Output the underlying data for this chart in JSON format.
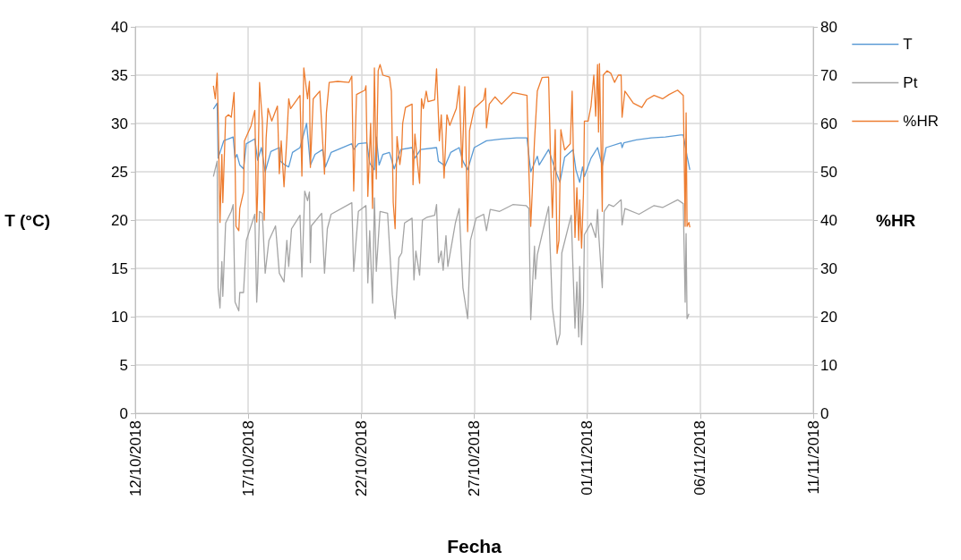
{
  "chart_data": {
    "type": "line",
    "xlabel": "Fecha",
    "ylabel": "T (°C)",
    "y2label": "%HR",
    "xlim": [
      "2018-10-12",
      "2018-11-11"
    ],
    "xticks": [
      {
        "value": "2018-10-12",
        "label": "12/10/2018"
      },
      {
        "value": "2018-10-17",
        "label": "17/10/2018"
      },
      {
        "value": "2018-10-22",
        "label": "22/10/2018"
      },
      {
        "value": "2018-10-27",
        "label": "27/10/2018"
      },
      {
        "value": "2018-11-01",
        "label": "01/11/2018"
      },
      {
        "value": "2018-11-06",
        "label": "06/11/2018"
      },
      {
        "value": "2018-11-11",
        "label": "11/11/2018"
      }
    ],
    "ylim": [
      0,
      40
    ],
    "yticks": [
      0,
      5,
      10,
      15,
      20,
      25,
      30,
      35,
      40
    ],
    "y2lim": [
      0,
      80
    ],
    "y2ticks": [
      0,
      10,
      20,
      30,
      40,
      50,
      60,
      70,
      80
    ],
    "grid": true,
    "legend": "right",
    "marker": "none",
    "line_style": "solid",
    "series": [
      {
        "name": "T",
        "color": "#5b9bd5",
        "x": [
          "2018-10-15T11:00",
          "2018-10-15T15:00",
          "2018-10-15T16:00",
          "2018-10-15T22:00",
          "2018-10-16T08:00",
          "2018-10-16T10:00",
          "2018-10-16T12:00",
          "2018-10-16T15:00",
          "2018-10-16T19:00",
          "2018-10-16T22:00",
          "2018-10-17T07:00",
          "2018-10-17T10:00",
          "2018-10-17T14:00",
          "2018-10-17T18:00",
          "2018-10-18T00:00",
          "2018-10-18T09:00",
          "2018-10-18T10:00",
          "2018-10-18T15:00",
          "2018-10-18T19:00",
          "2018-10-18T23:00",
          "2018-10-19T07:00",
          "2018-10-19T14:00",
          "2018-10-19T18:00",
          "2018-10-19T23:00",
          "2018-10-20T07:00",
          "2018-10-20T10:00",
          "2018-10-20T16:00",
          "2018-10-21T14:00",
          "2018-10-21T16:00",
          "2018-10-21T21:00",
          "2018-10-22T06:00",
          "2018-10-22T09:00",
          "2018-10-22T14:00",
          "2018-10-22T16:00",
          "2018-10-22T19:00",
          "2018-10-22T23:00",
          "2018-10-23T06:00",
          "2018-10-23T11:00",
          "2018-10-23T18:00",
          "2018-10-24T06:00",
          "2018-10-24T09:00",
          "2018-10-24T15:00",
          "2018-10-25T08:00",
          "2018-10-25T10:00",
          "2018-10-25T17:00",
          "2018-10-25T23:00",
          "2018-10-26T08:00",
          "2018-10-26T12:00",
          "2018-10-26T17:00",
          "2018-10-27T00:00",
          "2018-10-27T13:00",
          "2018-10-28T05:00",
          "2018-10-28T21:00",
          "2018-10-29T08:00",
          "2018-10-29T12:00",
          "2018-10-29T19:00",
          "2018-10-29T21:00",
          "2018-10-30T07:00",
          "2018-10-30T14:00",
          "2018-10-30T19:00",
          "2018-10-31T00:00",
          "2018-10-31T09:00",
          "2018-10-31T12:00",
          "2018-10-31T16:00",
          "2018-10-31T19:00",
          "2018-10-31T21:00",
          "2018-11-01T04:00",
          "2018-11-01T11:00",
          "2018-11-01T16:00",
          "2018-11-01T20:00",
          "2018-11-02T12:00",
          "2018-11-02T13:00",
          "2018-11-02T15:00",
          "2018-11-03T04:00",
          "2018-11-03T20:00",
          "2018-11-04T11:00",
          "2018-11-05T03:00",
          "2018-11-05T06:00",
          "2018-11-05T10:00",
          "2018-11-05T13:00"
        ],
        "values": [
          31.5,
          32.1,
          26.4,
          28.2,
          28.6,
          26.4,
          26.8,
          25.7,
          25.3,
          27.9,
          28.4,
          26.2,
          27.5,
          25.0,
          27.1,
          27.5,
          26.1,
          25.7,
          25.5,
          27.0,
          27.5,
          30.0,
          25.7,
          26.8,
          27.3,
          25.5,
          27.0,
          27.9,
          27.3,
          27.9,
          28.0,
          25.9,
          25.2,
          28.6,
          25.7,
          26.8,
          27.0,
          25.3,
          27.3,
          27.5,
          26.4,
          27.3,
          27.5,
          26.1,
          25.6,
          27.0,
          27.5,
          26.1,
          25.2,
          27.5,
          28.2,
          28.4,
          28.5,
          28.5,
          25.0,
          26.6,
          25.7,
          27.3,
          25.2,
          23.9,
          26.5,
          27.3,
          25.2,
          23.9,
          25.5,
          24.5,
          26.4,
          27.5,
          25.6,
          27.5,
          28.0,
          27.5,
          28.0,
          28.3,
          28.5,
          28.6,
          28.8,
          28.8,
          26.6,
          25.2
        ]
      },
      {
        "name": "Pt",
        "color": "#a5a5a5",
        "x": [
          "2018-10-15T11:00",
          "2018-10-15T15:00",
          "2018-10-15T16:00",
          "2018-10-15T18:00",
          "2018-10-15T20:00",
          "2018-10-15T21:00",
          "2018-10-16T00:00",
          "2018-10-16T06:00",
          "2018-10-16T08:00",
          "2018-10-16T10:00",
          "2018-10-16T14:00",
          "2018-10-16T15:00",
          "2018-10-16T19:00",
          "2018-10-16T22:00",
          "2018-10-17T07:00",
          "2018-10-17T09:00",
          "2018-10-17T10:00",
          "2018-10-17T12:00",
          "2018-10-17T15:00",
          "2018-10-17T18:00",
          "2018-10-17T22:00",
          "2018-10-18T05:00",
          "2018-10-18T09:00",
          "2018-10-18T14:00",
          "2018-10-18T17:00",
          "2018-10-18T19:00",
          "2018-10-18T22:00",
          "2018-10-19T07:00",
          "2018-10-19T09:00",
          "2018-10-19T12:00",
          "2018-10-19T15:00",
          "2018-10-19T17:00",
          "2018-10-19T18:00",
          "2018-10-19T19:00",
          "2018-10-20T06:00",
          "2018-10-20T09:00",
          "2018-10-20T12:00",
          "2018-10-20T16:00",
          "2018-10-21T14:00",
          "2018-10-21T16:00",
          "2018-10-21T21:00",
          "2018-10-22T05:00",
          "2018-10-22T07:00",
          "2018-10-22T09:00",
          "2018-10-22T12:00",
          "2018-10-22T14:00",
          "2018-10-22T16:00",
          "2018-10-22T20:00",
          "2018-10-23T04:00",
          "2018-10-23T09:00",
          "2018-10-23T12:00",
          "2018-10-23T16:00",
          "2018-10-23T19:00",
          "2018-10-23T22:00",
          "2018-10-24T06:00",
          "2018-10-24T08:00",
          "2018-10-24T10:00",
          "2018-10-24T14:00",
          "2018-10-24T17:00",
          "2018-10-24T22:00",
          "2018-10-25T06:00",
          "2018-10-25T08:00",
          "2018-10-25T10:00",
          "2018-10-25T13:00",
          "2018-10-25T15:00",
          "2018-10-25T18:00",
          "2018-10-25T20:00",
          "2018-10-26T04:00",
          "2018-10-26T08:00",
          "2018-10-26T12:00",
          "2018-10-26T17:00",
          "2018-10-26T20:00",
          "2018-10-27T02:00",
          "2018-10-27T10:00",
          "2018-10-27T13:00",
          "2018-10-27T17:00",
          "2018-10-28T03:00",
          "2018-10-28T17:00",
          "2018-10-29T07:00",
          "2018-10-29T10:00",
          "2018-10-29T12:00",
          "2018-10-29T16:00",
          "2018-10-29T17:00",
          "2018-10-29T19:00",
          "2018-10-30T07:00",
          "2018-10-30T11:00",
          "2018-10-30T16:00",
          "2018-10-30T19:00",
          "2018-10-30T21:00",
          "2018-10-31T07:00",
          "2018-10-31T11:00",
          "2018-10-31T13:00",
          "2018-10-31T15:00",
          "2018-10-31T16:00",
          "2018-10-31T18:00",
          "2018-10-31T20:00",
          "2018-10-31T21:00",
          "2018-11-01T04:00",
          "2018-11-01T09:00",
          "2018-11-01T11:00",
          "2018-11-01T12:00",
          "2018-11-01T16:00",
          "2018-11-01T18:00",
          "2018-11-01T23:00",
          "2018-11-02T04:00",
          "2018-11-02T12:00",
          "2018-11-02T13:00",
          "2018-11-02T16:00",
          "2018-11-03T07:00",
          "2018-11-03T23:00",
          "2018-11-04T08:00",
          "2018-11-05T00:00",
          "2018-11-05T06:00",
          "2018-11-05T08:00",
          "2018-11-05T09:00",
          "2018-11-05T10:00",
          "2018-11-05T12:00"
        ],
        "values": [
          24.5,
          26.1,
          13.0,
          10.9,
          15.7,
          12.1,
          19.7,
          20.9,
          21.6,
          11.5,
          10.6,
          12.5,
          12.5,
          17.9,
          20.6,
          11.5,
          13.6,
          20.9,
          20.7,
          14.5,
          17.9,
          19.4,
          14.5,
          13.6,
          17.9,
          15.2,
          19.1,
          20.5,
          14.1,
          23.0,
          22.0,
          22.9,
          15.6,
          19.4,
          20.7,
          14.5,
          19.1,
          20.6,
          21.8,
          14.7,
          20.9,
          21.5,
          13.5,
          18.9,
          11.4,
          22.3,
          14.7,
          20.9,
          20.7,
          12.3,
          9.8,
          16.1,
          16.6,
          19.7,
          20.2,
          13.8,
          16.8,
          14.3,
          20.0,
          20.3,
          20.5,
          21.6,
          15.6,
          16.8,
          14.8,
          18.4,
          15.2,
          19.7,
          21.2,
          13.0,
          9.8,
          17.9,
          20.2,
          20.6,
          18.9,
          21.1,
          20.9,
          21.6,
          21.5,
          21.2,
          9.7,
          17.3,
          13.9,
          16.4,
          21.4,
          10.9,
          7.1,
          8.2,
          16.6,
          20.5,
          8.8,
          13.6,
          7.9,
          15.2,
          7.1,
          11.5,
          18.5,
          19.7,
          18.2,
          21.1,
          18.8,
          13.0,
          20.9,
          21.6,
          21.4,
          22.1,
          19.5,
          21.2,
          20.6,
          21.5,
          21.3,
          22.1,
          21.7,
          11.5,
          18.6,
          9.8,
          10.3
        ]
      },
      {
        "name": "%HR",
        "color": "#ed7d31",
        "axis": "y2",
        "x": [
          "2018-10-15T11:00",
          "2018-10-15T13:00",
          "2018-10-15T15:00",
          "2018-10-15T16:00",
          "2018-10-15T18:00",
          "2018-10-15T20:00",
          "2018-10-15T21:00",
          "2018-10-16T00:00",
          "2018-10-16T03:00",
          "2018-10-16T06:00",
          "2018-10-16T09:00",
          "2018-10-16T11:00",
          "2018-10-16T14:00",
          "2018-10-16T15:00",
          "2018-10-16T19:00",
          "2018-10-16T20:00",
          "2018-10-17T03:00",
          "2018-10-17T07:00",
          "2018-10-17T09:00",
          "2018-10-17T10:00",
          "2018-10-17T12:00",
          "2018-10-17T15:00",
          "2018-10-17T17:00",
          "2018-10-17T19:00",
          "2018-10-17T21:00",
          "2018-10-18T01:00",
          "2018-10-18T07:00",
          "2018-10-18T09:00",
          "2018-10-18T11:00",
          "2018-10-18T14:00",
          "2018-10-18T17:00",
          "2018-10-18T19:00",
          "2018-10-18T21:00",
          "2018-10-19T07:00",
          "2018-10-19T09:00",
          "2018-10-19T11:00",
          "2018-10-19T15:00",
          "2018-10-19T17:00",
          "2018-10-19T18:00",
          "2018-10-19T21:00",
          "2018-10-20T04:00",
          "2018-10-20T09:00",
          "2018-10-20T11:00",
          "2018-10-20T14:00",
          "2018-10-20T23:00",
          "2018-10-21T11:00",
          "2018-10-21T14:00",
          "2018-10-21T16:00",
          "2018-10-21T19:00",
          "2018-10-22T04:00",
          "2018-10-22T05:00",
          "2018-10-22T07:00",
          "2018-10-22T10:00",
          "2018-10-22T12:00",
          "2018-10-22T14:00",
          "2018-10-22T16:00",
          "2018-10-22T18:00",
          "2018-10-22T20:00",
          "2018-10-22T23:00",
          "2018-10-23T06:00",
          "2018-10-23T08:00",
          "2018-10-23T10:00",
          "2018-10-23T12:00",
          "2018-10-23T14:00",
          "2018-10-23T17:00",
          "2018-10-23T19:00",
          "2018-10-23T20:00",
          "2018-10-23T23:00",
          "2018-10-24T06:00",
          "2018-10-24T07:00",
          "2018-10-24T09:00",
          "2018-10-24T12:00",
          "2018-10-24T14:00",
          "2018-10-24T16:00",
          "2018-10-24T18:00",
          "2018-10-24T21:00",
          "2018-10-24T23:00",
          "2018-10-25T06:00",
          "2018-10-25T08:00",
          "2018-10-25T11:00",
          "2018-10-25T13:00",
          "2018-10-25T16:00",
          "2018-10-25T19:00",
          "2018-10-25T22:00",
          "2018-10-26T05:00",
          "2018-10-26T08:00",
          "2018-10-26T11:00",
          "2018-10-26T14:00",
          "2018-10-26T17:00",
          "2018-10-26T19:00",
          "2018-10-27T00:00",
          "2018-10-27T10:00",
          "2018-10-27T12:00",
          "2018-10-27T13:00",
          "2018-10-27T16:00",
          "2018-10-27T22:00",
          "2018-10-28T05:00",
          "2018-10-28T17:00",
          "2018-10-29T08:00",
          "2018-10-29T10:00",
          "2018-10-29T12:00",
          "2018-10-29T16:00",
          "2018-10-29T19:00",
          "2018-10-30T00:00",
          "2018-10-30T07:00",
          "2018-10-30T09:00",
          "2018-10-30T11:00",
          "2018-10-30T14:00",
          "2018-10-30T16:00",
          "2018-10-30T18:00",
          "2018-10-30T20:00",
          "2018-10-31T00:00",
          "2018-10-31T06:00",
          "2018-10-31T08:00",
          "2018-10-31T11:00",
          "2018-10-31T13:00",
          "2018-10-31T15:00",
          "2018-10-31T16:00",
          "2018-10-31T18:00",
          "2018-10-31T20:00",
          "2018-10-31T21:00",
          "2018-11-01T01:00",
          "2018-11-01T04:00",
          "2018-11-01T07:00",
          "2018-11-01T09:00",
          "2018-11-01T11:00",
          "2018-11-01T12:00",
          "2018-11-01T13:00",
          "2018-11-01T16:00",
          "2018-11-01T17:00",
          "2018-11-01T21:00",
          "2018-11-02T01:00",
          "2018-11-02T05:00",
          "2018-11-02T09:00",
          "2018-11-02T12:00",
          "2018-11-02T13:00",
          "2018-11-02T16:00",
          "2018-11-03T01:00",
          "2018-11-03T10:00",
          "2018-11-03T15:00",
          "2018-11-03T23:00",
          "2018-11-04T08:00",
          "2018-11-04T15:00",
          "2018-11-05T00:00",
          "2018-11-05T06:00",
          "2018-11-05T08:00",
          "2018-11-05T09:00",
          "2018-11-05T10:00",
          "2018-11-05T12:00",
          "2018-11-05T13:00"
        ],
        "values": [
          67.8,
          65.1,
          70.4,
          62.4,
          39.5,
          53.6,
          43.6,
          61.3,
          61.8,
          61.3,
          66.4,
          38.7,
          37.8,
          42.4,
          45.8,
          56.4,
          59.5,
          62.7,
          39.6,
          45.5,
          68.5,
          60.5,
          40.0,
          56.9,
          63.1,
          60.5,
          63.6,
          49.6,
          56.4,
          46.9,
          56.9,
          65.1,
          63.1,
          65.8,
          49.1,
          71.5,
          65.1,
          68.7,
          50.9,
          65.1,
          66.7,
          49.5,
          62.2,
          68.5,
          68.7,
          68.5,
          69.8,
          46.0,
          66.0,
          66.9,
          67.8,
          44.9,
          60.0,
          42.4,
          71.5,
          48.5,
          70.9,
          72.2,
          70.0,
          69.6,
          66.7,
          43.6,
          38.2,
          57.3,
          51.5,
          54.5,
          60.0,
          63.3,
          64.0,
          47.3,
          57.8,
          51.3,
          47.6,
          65.1,
          63.1,
          66.7,
          64.5,
          64.9,
          71.3,
          56.4,
          61.8,
          48.7,
          61.8,
          59.6,
          63.1,
          67.8,
          50.9,
          67.6,
          37.6,
          58.5,
          63.1,
          64.9,
          67.3,
          59.1,
          64.0,
          65.5,
          64.0,
          66.4,
          65.8,
          50.4,
          38.7,
          56.4,
          66.7,
          69.5,
          69.6,
          53.3,
          40.5,
          58.7,
          33.1,
          35.8,
          58.7,
          54.5,
          55.8,
          66.7,
          36.4,
          46.7,
          35.8,
          44.2,
          34.2,
          45.5,
          60.5,
          60.5,
          63.6,
          70.0,
          61.5,
          72.2,
          58.2,
          72.4,
          41.8,
          70.0,
          70.9,
          70.4,
          68.5,
          70.0,
          70.0,
          61.3,
          66.7,
          64.2,
          63.3,
          64.9,
          65.8,
          65.1,
          66.0,
          66.9,
          65.8,
          38.7,
          62.2,
          38.7,
          39.5,
          38.5
        ]
      }
    ]
  }
}
